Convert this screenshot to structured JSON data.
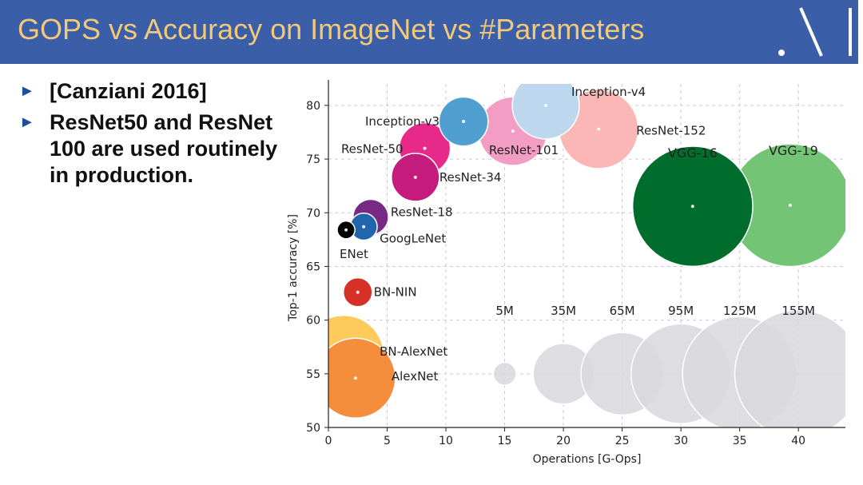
{
  "slide": {
    "title": "GOPS vs Accuracy on ImageNet vs #Parameters",
    "bullets": [
      "[Canziani 2016]",
      "ResNet50 and ResNet 100 are used routinely in production."
    ]
  },
  "colors": {
    "header_bg": "#3a5ea8",
    "title_text": "#f1c979",
    "bullet_arrow": "#1f4e9a",
    "grid": "#c9c9d9",
    "size_legend": "#d8d8dd"
  },
  "chart_data": {
    "type": "scatter",
    "title": "",
    "xlabel": "Operations [G-Ops]",
    "ylabel": "Top-1 accuracy [%]",
    "xlim": [
      0,
      44
    ],
    "ylim": [
      50,
      82
    ],
    "xticks": [
      0,
      5,
      10,
      15,
      20,
      25,
      30,
      35,
      40
    ],
    "yticks": [
      50,
      55,
      60,
      65,
      70,
      75,
      80
    ],
    "grid": true,
    "points": [
      {
        "name": "BN-AlexNet",
        "x": 1.3,
        "y": 56.7,
        "params_M": 62,
        "color": "#fdca5c"
      },
      {
        "name": "AlexNet",
        "x": 2.3,
        "y": 54.6,
        "params_M": 61,
        "color": "#f48d3c"
      },
      {
        "name": "BN-NIN",
        "x": 2.5,
        "y": 62.6,
        "params_M": 8,
        "color": "#d73027"
      },
      {
        "name": "ENet",
        "x": 1.5,
        "y": 68.4,
        "params_M": 3,
        "color": "#000000"
      },
      {
        "name": "GoogLeNet",
        "x": 3.0,
        "y": 68.7,
        "params_M": 7,
        "color": "#2166ac"
      },
      {
        "name": "ResNet-18",
        "x": 3.6,
        "y": 69.6,
        "params_M": 12,
        "color": "#762a83"
      },
      {
        "name": "ResNet-34",
        "x": 7.4,
        "y": 73.3,
        "params_M": 22,
        "color": "#c51b7d"
      },
      {
        "name": "ResNet-50",
        "x": 8.2,
        "y": 76.0,
        "params_M": 25,
        "color": "#e7298a"
      },
      {
        "name": "Inception-v3",
        "x": 11.5,
        "y": 78.5,
        "params_M": 23,
        "color": "#4f9fd1"
      },
      {
        "name": "ResNet-101",
        "x": 15.7,
        "y": 77.6,
        "params_M": 45,
        "color": "#f39cc4"
      },
      {
        "name": "Inception-v4",
        "x": 18.5,
        "y": 80.0,
        "params_M": 43,
        "color": "#bcd7ee"
      },
      {
        "name": "ResNet-152",
        "x": 23.0,
        "y": 77.8,
        "params_M": 60,
        "color": "#fab7b5"
      },
      {
        "name": "VGG-16",
        "x": 31.0,
        "y": 70.6,
        "params_M": 138,
        "color": "#006d2c"
      },
      {
        "name": "VGG-19",
        "x": 39.3,
        "y": 70.7,
        "params_M": 144,
        "color": "#74c476"
      }
    ],
    "size_legend": [
      {
        "label": "5M",
        "x": 15,
        "y": 55,
        "params_M": 5
      },
      {
        "label": "35M",
        "x": 20,
        "y": 55,
        "params_M": 35
      },
      {
        "label": "65M",
        "x": 25,
        "y": 55,
        "params_M": 65
      },
      {
        "label": "95M",
        "x": 30,
        "y": 55,
        "params_M": 95
      },
      {
        "label": "125M",
        "x": 35,
        "y": 55,
        "params_M": 125
      },
      {
        "label": "155M",
        "x": 40,
        "y": 55,
        "params_M": 155
      }
    ]
  }
}
